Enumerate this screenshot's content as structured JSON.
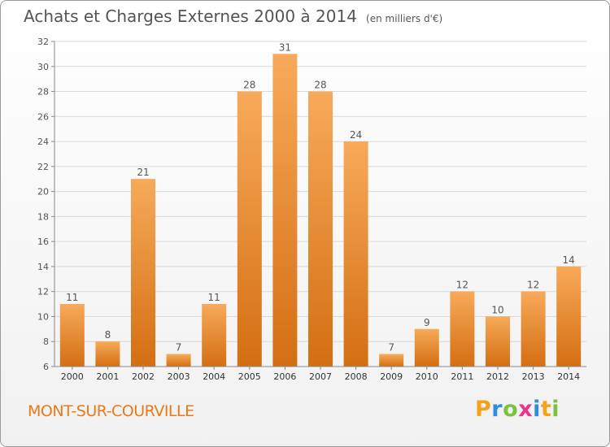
{
  "page": {
    "title": "Achats et Charges Externes 2000 à 2014",
    "unit": "(en milliers d'€)",
    "town": "MONT-SUR-COURVILLE",
    "logo": {
      "letters": [
        "P",
        "r",
        "o",
        "x",
        "i",
        "t",
        "i"
      ],
      "colors": [
        "#f4a21b",
        "#2e8fd8",
        "#7cc242",
        "#e8358b",
        "#2e8fd8",
        "#f4a21b",
        "#7cc242"
      ]
    }
  },
  "chart_data": {
    "type": "bar",
    "categories": [
      "2000",
      "2001",
      "2002",
      "2003",
      "2004",
      "2005",
      "2006",
      "2007",
      "2008",
      "2009",
      "2010",
      "2011",
      "2012",
      "2013",
      "2014"
    ],
    "values": [
      11,
      8,
      21,
      7,
      11,
      28,
      31,
      28,
      24,
      7,
      9,
      12,
      10,
      12,
      14
    ],
    "title": "Achats et Charges Externes 2000 à 2014",
    "ylim": [
      6,
      32
    ],
    "yticks": [
      6,
      8,
      10,
      12,
      14,
      16,
      18,
      20,
      22,
      24,
      26,
      28,
      30,
      32
    ],
    "grid": true,
    "bar_color": "#f08f2e",
    "bar_color_light": "#f7aa5a",
    "bar_color_dark": "#d46e12"
  }
}
